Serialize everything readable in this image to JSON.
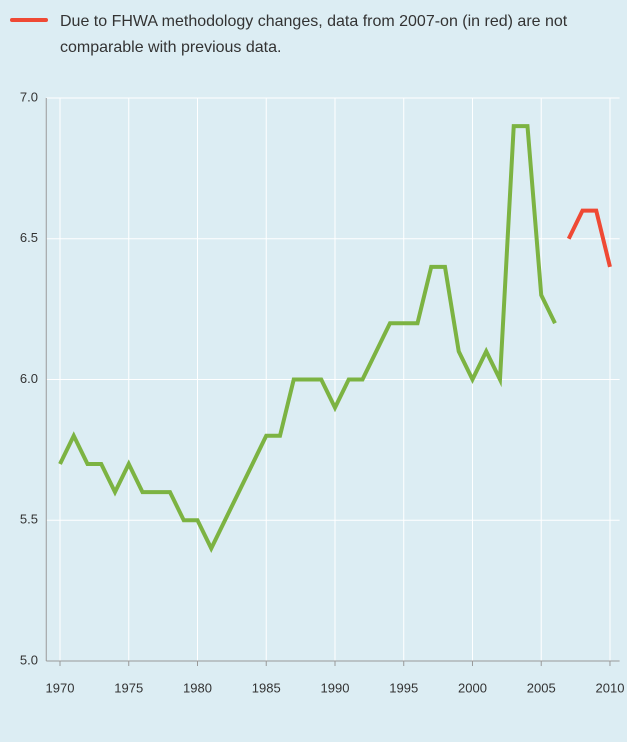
{
  "chart_data": {
    "type": "line",
    "series": [
      {
        "color": "#7cb342",
        "x": [
          1970,
          1971,
          1972,
          1973,
          1974,
          1975,
          1976,
          1977,
          1978,
          1979,
          1980,
          1981,
          1982,
          1983,
          1984,
          1985,
          1986,
          1987,
          1988,
          1989,
          1990,
          1991,
          1992,
          1993,
          1994,
          1995,
          1996,
          1997,
          1998,
          1999,
          2000,
          2001,
          2002,
          2003,
          2004,
          2005,
          2006
        ],
        "values": [
          5.7,
          5.8,
          5.7,
          5.7,
          5.6,
          5.7,
          5.6,
          5.6,
          5.6,
          5.5,
          5.5,
          5.4,
          5.5,
          5.6,
          5.7,
          5.8,
          5.8,
          6.0,
          6.0,
          6.0,
          5.9,
          6.0,
          6.0,
          6.1,
          6.2,
          6.2,
          6.2,
          6.4,
          6.4,
          6.1,
          6.0,
          6.1,
          6.0,
          6.9,
          6.9,
          6.3,
          6.2
        ]
      },
      {
        "name": "Due to FHWA methodology changes, data from 2007-on (in red) are not comparable with previous data.",
        "color": "#ef4934",
        "x": [
          2007,
          2008,
          2009,
          2010
        ],
        "values": [
          6.5,
          6.6,
          6.6,
          6.4
        ]
      }
    ],
    "xlim": [
      1969,
      2010.7
    ],
    "xticks": [
      1970,
      1975,
      1980,
      1985,
      1990,
      1995,
      2000,
      2005,
      2010
    ],
    "ylim": [
      5,
      7
    ],
    "yticks": [
      {
        "value": 5,
        "label": "5.0"
      },
      {
        "value": 5.5,
        "label": "5.5"
      },
      {
        "value": 6,
        "label": "6.0"
      },
      {
        "value": 6.5,
        "label": "6.5"
      },
      {
        "value": 7,
        "label": "7.0"
      }
    ],
    "grid": true
  }
}
